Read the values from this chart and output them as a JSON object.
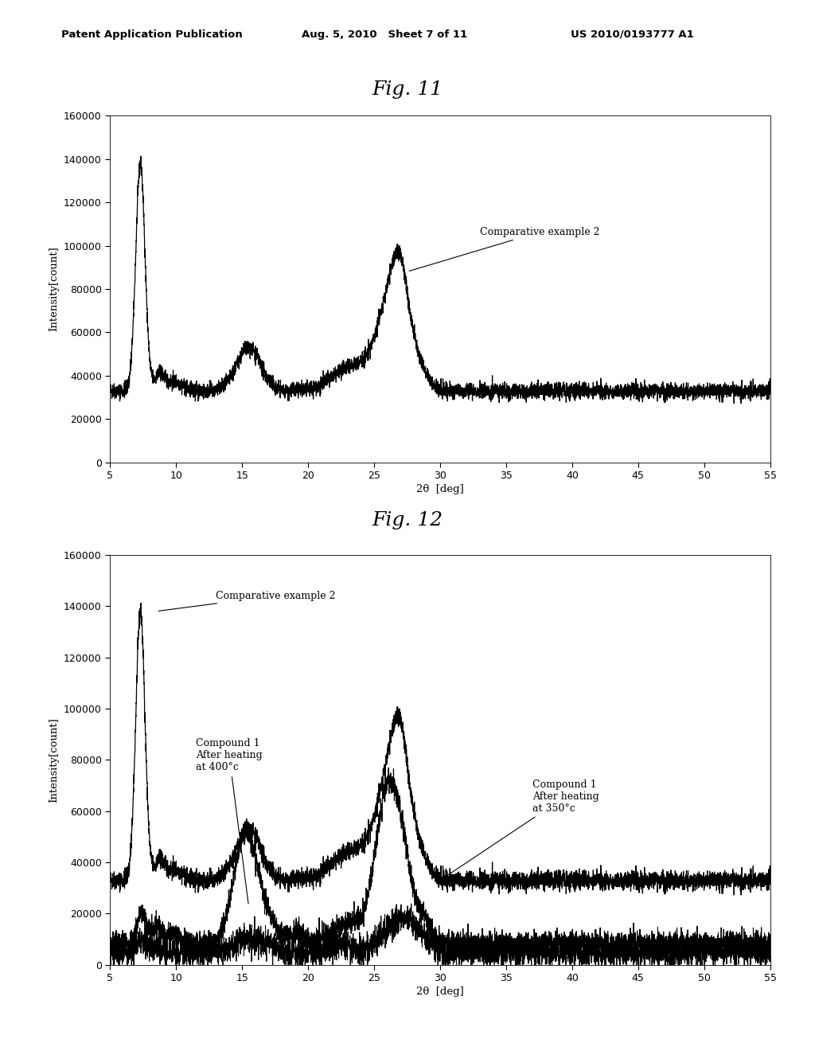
{
  "fig11_title": "Fig. 11",
  "fig12_title": "Fig. 12",
  "header_left": "Patent Application Publication",
  "header_center": "Aug. 5, 2010   Sheet 7 of 11",
  "header_right": "US 2010/0193777 A1",
  "xlabel": "2θ  [deg]",
  "ylabel": "Intensity[count]",
  "xlim": [
    5,
    55
  ],
  "ylim": [
    0,
    160000
  ],
  "xticks": [
    5,
    10,
    15,
    20,
    25,
    30,
    35,
    40,
    45,
    50,
    55
  ],
  "yticks": [
    0,
    20000,
    40000,
    60000,
    80000,
    100000,
    120000,
    140000,
    160000
  ],
  "background": "#ffffff",
  "line_color": "#000000"
}
